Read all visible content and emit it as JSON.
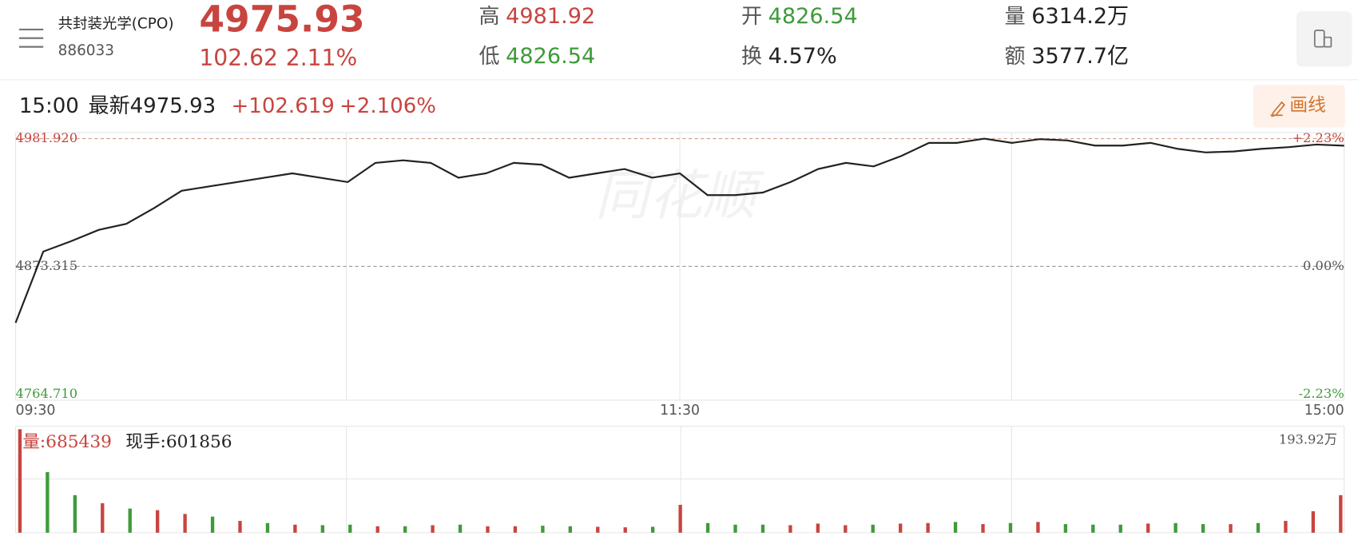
{
  "header": {
    "name": "共封装光学(CPO)",
    "code": "886033",
    "price": "4975.93",
    "change": "102.62",
    "change_pct": "2.11%",
    "high_label": "高",
    "high": "4981.92",
    "low_label": "低",
    "low": "4826.54",
    "open_label": "开",
    "open": "4826.54",
    "turnover_label": "换",
    "turnover": "4.57%",
    "volume_label": "量",
    "volume": "6314.2万",
    "amount_label": "额",
    "amount": "3577.7亿"
  },
  "info_bar": {
    "time": "15:00",
    "latest": "最新4975.93",
    "change": "+102.619",
    "change_pct": "+2.106%",
    "draw_button": "画线"
  },
  "watermark": "同花顺",
  "chart_data": [
    {
      "type": "line",
      "color": "#222222",
      "x": [
        0,
        5,
        10,
        15,
        20,
        25,
        30,
        35,
        40,
        45,
        50,
        55,
        60,
        65,
        70,
        75,
        80,
        85,
        90,
        95,
        100,
        105,
        110,
        115,
        120,
        125,
        130,
        135,
        140,
        145,
        150,
        155,
        160,
        165,
        170,
        175,
        180,
        185,
        190,
        195,
        200,
        205,
        210,
        215,
        220,
        225,
        230,
        235,
        240
      ],
      "values": [
        4825.3,
        4885.9,
        4894.7,
        4904.3,
        4909.5,
        4922.8,
        4937.6,
        4941.3,
        4945,
        4948.7,
        4952.4,
        4948.7,
        4945,
        4961.3,
        4963.5,
        4961.3,
        4948.7,
        4952.4,
        4961.3,
        4959.8,
        4948.7,
        4952.4,
        4956.1,
        4948.7,
        4952.4,
        4933.9,
        4933.9,
        4936.1,
        4945,
        4956.1,
        4961.3,
        4958.3,
        4967.2,
        4978.3,
        4978.3,
        4981.9,
        4978.3,
        4981.5,
        4980.4,
        4976,
        4976,
        4978.3,
        4973.2,
        4970.2,
        4971,
        4973.2,
        4974.7,
        4976.9,
        4975.93
      ],
      "xlim": [
        0,
        240
      ],
      "xticks": [
        {
          "value": 0,
          "label": "09:30"
        },
        {
          "value": 120,
          "label": "11:30"
        },
        {
          "value": 240,
          "label": "15:00"
        }
      ],
      "ylim": [
        4764.71,
        4981.92
      ],
      "yticks": [
        {
          "value": 4981.92,
          "label": "4981.920"
        },
        {
          "value": 4873.315,
          "label": "4873.315"
        },
        {
          "value": 4764.71,
          "label": "4764.710"
        }
      ],
      "y2lim": [
        -2.23,
        2.23
      ],
      "y2ticks": [
        {
          "value": 2.23,
          "label": "+2.23%"
        },
        {
          "value": 0,
          "label": "0.00%"
        },
        {
          "value": -2.23,
          "label": "-2.23%"
        }
      ]
    },
    {
      "type": "bar",
      "volume_label": "量:685439",
      "current_label": "现手:601856",
      "values": [
        193,
        113,
        70,
        55,
        45,
        42,
        35,
        30,
        22,
        18,
        15,
        14,
        15,
        12,
        12,
        14,
        15,
        12,
        12,
        13,
        12,
        11,
        10,
        11,
        52,
        18,
        15,
        15,
        14,
        17,
        14,
        15,
        17,
        18,
        20,
        16,
        18,
        20,
        16,
        15,
        15,
        17,
        18,
        16,
        16,
        18,
        22,
        40,
        70
      ],
      "colors": [
        "#c8443f",
        "#3f9a3a",
        "#3f9a3a",
        "#c8443f",
        "#3f9a3a",
        "#c8443f",
        "#c8443f",
        "#3f9a3a",
        "#c8443f",
        "#3f9a3a",
        "#c8443f",
        "#3f9a3a",
        "#3f9a3a",
        "#c8443f",
        "#3f9a3a",
        "#c8443f",
        "#3f9a3a",
        "#c8443f",
        "#c8443f",
        "#3f9a3a",
        "#3f9a3a",
        "#c8443f",
        "#c8443f",
        "#3f9a3a",
        "#c8443f",
        "#3f9a3a",
        "#3f9a3a",
        "#3f9a3a",
        "#c8443f",
        "#c8443f",
        "#c8443f",
        "#3f9a3a",
        "#c8443f",
        "#c8443f",
        "#3f9a3a",
        "#c8443f",
        "#3f9a3a",
        "#c8443f",
        "#3f9a3a",
        "#3f9a3a",
        "#3f9a3a",
        "#c8443f",
        "#3f9a3a",
        "#3f9a3a",
        "#c8443f",
        "#3f9a3a",
        "#c8443f",
        "#c8443f",
        "#c8443f"
      ],
      "xlim": [
        0,
        240
      ],
      "ylim": [
        0,
        193.92
      ],
      "yticks": [
        {
          "value": 193.92,
          "label": "193.92万"
        }
      ]
    }
  ]
}
